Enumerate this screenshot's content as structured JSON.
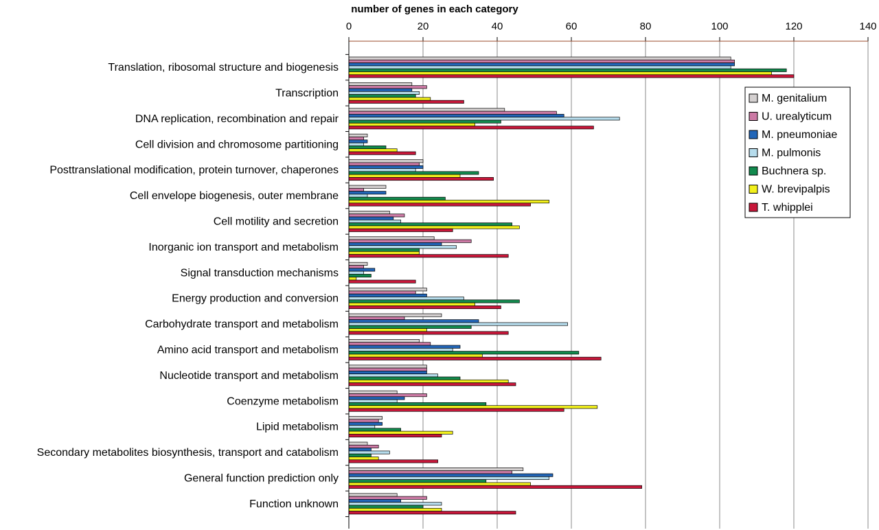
{
  "chart_data": {
    "type": "bar",
    "orientation": "horizontal",
    "xlabel": "number of genes in each category",
    "xlim": [
      0,
      140
    ],
    "xticks": [
      "0",
      "20",
      "40",
      "60",
      "80",
      "100",
      "120",
      "140"
    ],
    "x_axis_position": "top",
    "grid": "vertical",
    "legend_position": "right",
    "categories": [
      "Translation, ribosomal structure and biogenesis",
      "Transcription",
      "DNA replication, recombination and repair",
      "Cell division and chromosome partitioning",
      "Posttranslational modification, protein turnover, chaperones",
      "Cell envelope biogenesis, outer membrane",
      "Cell motility and secretion",
      "Inorganic ion transport and metabolism",
      "Signal transduction mechanisms",
      "Energy production and conversion",
      "Carbohydrate transport and metabolism",
      "Amino acid transport and metabolism",
      "Nucleotide transport and metabolism",
      "Coenzyme metabolism",
      "Lipid metabolism",
      "Secondary metabolites biosynthesis, transport and catabolism",
      "General function prediction only",
      "Function unknown"
    ],
    "series": [
      {
        "name": "M. genitalium",
        "color": "#d4d0d0",
        "values": [
          103,
          17,
          42,
          5,
          20,
          10,
          11,
          23,
          5,
          21,
          25,
          19,
          21,
          13,
          9,
          5,
          47,
          13
        ]
      },
      {
        "name": "U. urealyticum",
        "color": "#cc7aa5",
        "values": [
          104,
          21,
          56,
          4,
          19,
          4,
          15,
          33,
          4,
          18,
          15,
          22,
          21,
          21,
          8,
          8,
          44,
          21
        ]
      },
      {
        "name": "M. pneumoniae",
        "color": "#2266b8",
        "values": [
          104,
          17,
          58,
          5,
          20,
          10,
          12,
          25,
          7,
          21,
          35,
          30,
          21,
          15,
          9,
          6,
          55,
          14
        ]
      },
      {
        "name": "M. pulmonis",
        "color": "#b6dcec",
        "values": [
          103,
          19,
          73,
          4,
          18,
          5,
          14,
          29,
          4,
          31,
          59,
          28,
          24,
          13,
          7,
          11,
          54,
          25
        ]
      },
      {
        "name": "Buchnera sp.",
        "color": "#128a4e",
        "values": [
          118,
          18,
          41,
          10,
          35,
          26,
          44,
          19,
          6,
          46,
          33,
          62,
          30,
          37,
          14,
          6,
          37,
          20
        ]
      },
      {
        "name": "W. brevipalpis",
        "color": "#f2f01c",
        "values": [
          114,
          22,
          34,
          13,
          30,
          54,
          46,
          19,
          2,
          34,
          21,
          36,
          43,
          67,
          28,
          8,
          49,
          25
        ]
      },
      {
        "name": "T. whipplei",
        "color": "#c8173a",
        "values": [
          120,
          31,
          66,
          18,
          39,
          49,
          28,
          43,
          18,
          41,
          43,
          68,
          45,
          58,
          25,
          24,
          79,
          45
        ]
      }
    ]
  }
}
